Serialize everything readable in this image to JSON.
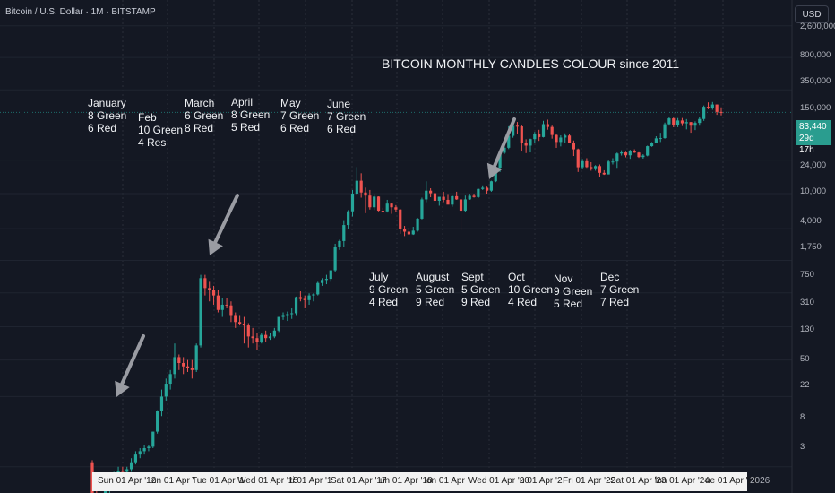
{
  "header": {
    "symbol": "Bitcoin / U.S. Dollar · 1M · BITSTAMP",
    "currency": "USD"
  },
  "price_tag": {
    "price": "83,440",
    "countdown": "29d 17h"
  },
  "chart_data": {
    "type": "candlestick",
    "title": "BITCOIN MONTHLY CANDLES COLOUR since 2011",
    "y_scale": "log",
    "y_ticks": [
      "2,600,000",
      "800,000",
      "350,000",
      "150,000",
      "83,440",
      "24,000",
      "10,000",
      "4,000",
      "1,750",
      "750",
      "310",
      "130",
      "50",
      "22",
      "8",
      "3"
    ],
    "x_ticks": [
      "Sun 01 Apr '12",
      "on 01 Apr '",
      "Tue 01 Apr '1",
      "Wed 01 Apr '15",
      "ri 01 Apr '1",
      "Sat 01 Apr '17",
      "un 01 Apr '18",
      "on 01 Apr '",
      "Wed 01 Apr '20",
      "u 01 Apr '2",
      "Fri 01 Apr '22",
      "Sat 01 Apr '23",
      "lon 01 Apr '24",
      "ue 01 Apr '25",
      "2026"
    ],
    "colors": {
      "up": "#26a69a",
      "down": "#ef5350",
      "background": "#141823",
      "arrow": "#9a9ca3"
    },
    "monthly_stats": [
      {
        "month": "January",
        "green": "8 Green",
        "red": "6 Red"
      },
      {
        "month": "Feb",
        "green": "10 Green",
        "red": "4 Res"
      },
      {
        "month": "March",
        "green": "6 Green",
        "red": "8 Red"
      },
      {
        "month": "April",
        "green": "8 Green",
        "red": "5 Red"
      },
      {
        "month": "May",
        "green": "7 Green",
        "red": "6 Red"
      },
      {
        "month": "June",
        "green": "7 Green",
        "red": "6 Red"
      },
      {
        "month": "July",
        "green": "9 Green",
        "red": "4 Red"
      },
      {
        "month": "August",
        "green": "5 Green",
        "red": "9 Red"
      },
      {
        "month": "Sept",
        "green": "5 Green",
        "red": "9 Red"
      },
      {
        "month": "Oct",
        "green": "10 Green",
        "red": "4 Red"
      },
      {
        "month": "Nov",
        "green": "9 Green",
        "red": "5 Red"
      },
      {
        "month": "Dec",
        "green": "7 Green",
        "red": "7 Red"
      }
    ],
    "candles": [
      [
        9,
        9.5,
        2.2,
        3
      ],
      [
        3,
        4.5,
        2,
        2.5
      ],
      [
        2.5,
        4,
        2,
        3.2
      ],
      [
        3.2,
        5,
        3,
        4.8
      ],
      [
        4.8,
        6,
        4,
        5
      ],
      [
        5,
        7,
        4.8,
        6.5
      ],
      [
        6.5,
        8,
        6,
        7.2
      ],
      [
        7.2,
        8,
        6.5,
        7
      ],
      [
        7,
        8,
        6,
        7.5
      ],
      [
        7.5,
        10,
        7,
        9
      ],
      [
        9,
        12,
        8.5,
        11
      ],
      [
        11,
        13,
        10,
        12
      ],
      [
        12,
        14,
        11,
        13
      ],
      [
        13,
        14,
        12,
        13.5
      ],
      [
        13.5,
        20,
        13,
        20
      ],
      [
        20,
        35,
        19,
        34
      ],
      [
        34,
        60,
        30,
        50
      ],
      [
        50,
        80,
        45,
        70
      ],
      [
        70,
        100,
        60,
        90
      ],
      [
        90,
        200,
        80,
        140
      ],
      [
        140,
        150,
        100,
        120
      ],
      [
        120,
        140,
        90,
        110
      ],
      [
        110,
        130,
        95,
        105
      ],
      [
        105,
        130,
        80,
        100
      ],
      [
        100,
        200,
        95,
        190
      ],
      [
        190,
        1200,
        180,
        1100
      ],
      [
        1100,
        1200,
        700,
        850
      ],
      [
        850,
        1000,
        600,
        800
      ],
      [
        800,
        900,
        550,
        700
      ],
      [
        700,
        800,
        450,
        480
      ],
      [
        480,
        650,
        400,
        550
      ],
      [
        550,
        650,
        500,
        540
      ],
      [
        540,
        600,
        350,
        420
      ],
      [
        420,
        450,
        300,
        350
      ],
      [
        350,
        420,
        320,
        330
      ],
      [
        330,
        400,
        200,
        320
      ],
      [
        320,
        340,
        180,
        240
      ],
      [
        240,
        300,
        200,
        230
      ],
      [
        230,
        260,
        170,
        210
      ],
      [
        210,
        260,
        200,
        250
      ],
      [
        250,
        280,
        210,
        230
      ],
      [
        230,
        260,
        220,
        240
      ],
      [
        240,
        300,
        230,
        280
      ],
      [
        280,
        400,
        270,
        400
      ],
      [
        400,
        450,
        370,
        420
      ],
      [
        420,
        460,
        360,
        430
      ],
      [
        430,
        500,
        380,
        440
      ],
      [
        440,
        680,
        420,
        670
      ],
      [
        670,
        780,
        600,
        640
      ],
      [
        640,
        700,
        500,
        620
      ],
      [
        620,
        740,
        550,
        700
      ],
      [
        700,
        740,
        600,
        720
      ],
      [
        720,
        1000,
        700,
        970
      ],
      [
        970,
        1100,
        900,
        1050
      ],
      [
        1050,
        1200,
        940,
        1080
      ],
      [
        1080,
        1350,
        1000,
        1350
      ],
      [
        1350,
        2700,
        1300,
        2500
      ],
      [
        2500,
        3000,
        2300,
        2900
      ],
      [
        2900,
        5000,
        2500,
        4400
      ],
      [
        4400,
        6500,
        4000,
        6300
      ],
      [
        6300,
        11000,
        5500,
        10000
      ],
      [
        10000,
        20000,
        9500,
        14000
      ],
      [
        14000,
        17000,
        9000,
        10300
      ],
      [
        10300,
        11700,
        6000,
        9500
      ],
      [
        9500,
        11000,
        6600,
        7000
      ],
      [
        7000,
        9900,
        6500,
        9250
      ],
      [
        9250,
        9300,
        6300,
        6400
      ],
      [
        6400,
        6900,
        6500,
        6300
      ],
      [
        6300,
        8500,
        6100,
        7700
      ],
      [
        7700,
        7800,
        5900,
        7000
      ],
      [
        7000,
        7400,
        6200,
        6600
      ],
      [
        6600,
        6700,
        3500,
        4000
      ],
      [
        4000,
        4300,
        3300,
        3700
      ],
      [
        3700,
        4100,
        3400,
        3450
      ],
      [
        3450,
        4200,
        3400,
        3800
      ],
      [
        3800,
        5300,
        3700,
        5200
      ],
      [
        5200,
        9000,
        5100,
        8600
      ],
      [
        8600,
        13800,
        8000,
        10800
      ],
      [
        10800,
        11500,
        9100,
        10100
      ],
      [
        10100,
        10900,
        7800,
        8300
      ],
      [
        8300,
        9000,
        7300,
        9200
      ],
      [
        9200,
        10500,
        8000,
        8500
      ],
      [
        8500,
        9900,
        7600,
        7500
      ],
      [
        7500,
        9500,
        7100,
        9350
      ],
      [
        9350,
        10500,
        8500,
        8600
      ],
      [
        8600,
        9200,
        3800,
        6400
      ],
      [
        6400,
        9500,
        6200,
        8600
      ],
      [
        8600,
        10000,
        8500,
        9450
      ],
      [
        9450,
        10000,
        9000,
        9140
      ],
      [
        9140,
        11400,
        8900,
        11300
      ],
      [
        11300,
        12400,
        11000,
        11650
      ],
      [
        11650,
        12000,
        10000,
        10800
      ],
      [
        10800,
        14000,
        10500,
        13800
      ],
      [
        13800,
        19900,
        13500,
        19700
      ],
      [
        19700,
        29000,
        17600,
        29000
      ],
      [
        29000,
        42000,
        28000,
        33100
      ],
      [
        33100,
        58000,
        32000,
        45200
      ],
      [
        45200,
        61800,
        43000,
        58800
      ],
      [
        58800,
        64900,
        47000,
        57800
      ],
      [
        57800,
        59500,
        30000,
        37300
      ],
      [
        37300,
        41300,
        28800,
        35000
      ],
      [
        35000,
        42000,
        29300,
        41500
      ],
      [
        41500,
        50000,
        37300,
        47100
      ],
      [
        47100,
        52900,
        39600,
        43800
      ],
      [
        43800,
        66900,
        43300,
        61300
      ],
      [
        61300,
        69000,
        53000,
        57000
      ],
      [
        57000,
        59000,
        42000,
        46200
      ],
      [
        46200,
        48000,
        33000,
        38500
      ],
      [
        38500,
        45800,
        34300,
        43200
      ],
      [
        43200,
        48200,
        37200,
        45500
      ],
      [
        45500,
        47400,
        37700,
        37700
      ],
      [
        37700,
        40000,
        26700,
        31800
      ],
      [
        31800,
        32400,
        17600,
        19900
      ],
      [
        19900,
        24700,
        18800,
        23300
      ],
      [
        23300,
        25200,
        19600,
        20000
      ],
      [
        20000,
        22700,
        18200,
        19400
      ],
      [
        19400,
        21000,
        18200,
        20500
      ],
      [
        20500,
        21400,
        15500,
        17200
      ],
      [
        17200,
        18400,
        16300,
        16500
      ],
      [
        16500,
        23900,
        16500,
        23100
      ],
      [
        23100,
        25200,
        21400,
        23100
      ],
      [
        23100,
        29200,
        19600,
        28500
      ],
      [
        28500,
        31000,
        27000,
        29300
      ],
      [
        29300,
        29800,
        25800,
        27200
      ],
      [
        27200,
        31400,
        24800,
        30500
      ],
      [
        30500,
        31800,
        28900,
        29200
      ],
      [
        29200,
        29500,
        25400,
        26000
      ],
      [
        26000,
        28000,
        24900,
        27000
      ],
      [
        27000,
        35000,
        26500,
        34500
      ],
      [
        34500,
        38400,
        34000,
        37700
      ],
      [
        37700,
        44700,
        37600,
        42300
      ],
      [
        42300,
        48900,
        38500,
        42600
      ],
      [
        42600,
        63900,
        41900,
        61200
      ],
      [
        61200,
        73800,
        59000,
        71300
      ],
      [
        71300,
        72800,
        56500,
        60600
      ],
      [
        60600,
        71900,
        56600,
        67500
      ],
      [
        67500,
        72000,
        58400,
        62700
      ],
      [
        62700,
        70000,
        53500,
        64600
      ],
      [
        64600,
        65000,
        49000,
        58900
      ],
      [
        58900,
        66000,
        52500,
        63300
      ],
      [
        63300,
        73600,
        58900,
        70200
      ],
      [
        70200,
        99800,
        66800,
        96400
      ],
      [
        96400,
        108300,
        90500,
        93400
      ],
      [
        93400,
        109300,
        89200,
        102400
      ],
      [
        102400,
        102500,
        78200,
        84300
      ],
      [
        84300,
        95000,
        77000,
        83440
      ]
    ],
    "arrows": [
      {
        "from": [
          160,
          375
        ],
        "to": [
          130,
          443
        ]
      },
      {
        "from": [
          265,
          218
        ],
        "to": [
          234,
          285
        ]
      },
      {
        "from": [
          574,
          133
        ],
        "to": [
          546,
          200
        ]
      }
    ]
  }
}
